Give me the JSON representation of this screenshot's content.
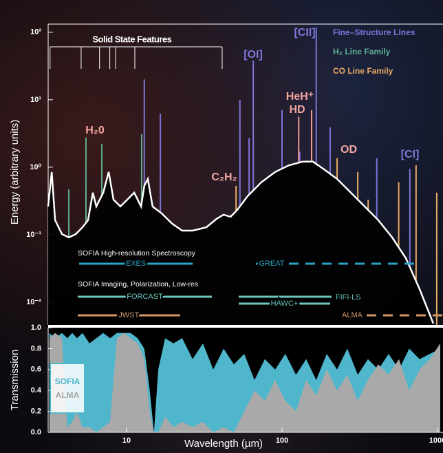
{
  "chart_data": [
    {
      "type": "line",
      "ylabel": "Energy (arbitrary units)",
      "log_x": true,
      "log_y": true,
      "xlim": [
        3.13,
        1085
      ],
      "ylim": [
        0.0046,
        132
      ],
      "yticks": [
        {
          "value": 100,
          "label": "10²"
        },
        {
          "value": 10,
          "label": "10¹"
        },
        {
          "value": 1,
          "label": "10⁰"
        },
        {
          "value": 0.1,
          "label": "10⁻¹"
        },
        {
          "value": 0.01,
          "label": "10⁻²"
        }
      ],
      "sed": {
        "color": "#ffffff",
        "x": [
          3.13,
          3.3,
          3.47,
          3.84,
          4.25,
          4.71,
          5.21,
          5.65,
          6.07,
          6.39,
          7.08,
          7.67,
          8.24,
          9.12,
          10.1,
          11.2,
          12.4,
          13.0,
          13.7,
          14.7,
          16.8,
          19.6,
          22.8,
          26.6,
          32.6,
          38.0,
          42.1,
          46.6,
          51.5,
          60.1,
          73.6,
          90.3,
          111,
          136,
          158,
          184,
          226,
          277,
          340,
          416,
          511,
          625,
          767,
          940
        ],
        "values": [
          0.262,
          0.85,
          0.164,
          0.102,
          0.091,
          0.102,
          0.129,
          0.164,
          0.419,
          0.262,
          0.419,
          0.85,
          0.331,
          0.262,
          0.331,
          0.419,
          0.262,
          0.53,
          0.67,
          0.262,
          0.207,
          0.146,
          0.115,
          0.115,
          0.129,
          0.172,
          0.198,
          0.184,
          0.233,
          0.373,
          0.597,
          0.85,
          1.07,
          1.21,
          1.21,
          0.95,
          0.67,
          0.419,
          0.262,
          0.164,
          0.091,
          0.045,
          0.0156,
          0.00483
        ]
      },
      "line_families": [
        {
          "name": "Fine–Structure Lines",
          "color": "#7d74d8",
          "lines": {
            "x": [
              13.0,
              16.5,
              53.6,
              61.4,
              65.3,
              100,
              130,
              166,
              204,
              407,
              664
            ],
            "values": [
              20,
              6.2,
              10,
              2.7,
              38,
              7,
              1.7,
              118,
              3.9,
              1.36,
              0.95
            ]
          }
        },
        {
          "name": "H₂ Line Family",
          "color": "#5fae90",
          "lines": {
            "x": [
              4.25,
              5.48,
              6.93,
              12.5
            ],
            "values": [
              0.47,
              2.75,
              2.2,
              3.1
            ]
          }
        },
        {
          "name": "CO Line Family",
          "color": "#e9a962",
          "lines": {
            "x": [
              50.6,
              226,
              307,
              358,
              563,
              728,
              989
            ],
            "values": [
              0.53,
              1.36,
              0.85,
              0.33,
              0.6,
              1.07,
              0.42
            ]
          }
        }
      ],
      "other_lines": {
        "color": "#f09a98",
        "x": [
          128,
          155
        ],
        "values": [
          5.6,
          7
        ]
      },
      "annotations": [
        {
          "text": "H₂0",
          "color": "#f4a6a2"
        },
        {
          "text": "C₂H₂",
          "color": "#f4a6a2"
        },
        {
          "text": "[OI]",
          "color": "#7f78d8"
        },
        {
          "text": "[CII]",
          "color": "#7f78d8"
        },
        {
          "text": "HeH⁺",
          "color": "#f4a6a2"
        },
        {
          "text": "HD",
          "color": "#f4a6a2"
        },
        {
          "text": "OD",
          "color": "#f4a6a2"
        },
        {
          "text": "[CI]",
          "color": "#7f78d8"
        }
      ],
      "bracket": {
        "label": "Solid State Features",
        "x": [
          3.22,
          41.2
        ],
        "ticks": [
          5.1,
          6.7,
          7.8,
          8.5,
          11.3
        ]
      },
      "instrument_groups": [
        {
          "title": "SOFIA High-resolution Spectroscopy",
          "instruments": [
            {
              "name": "EXES",
              "range": [
                4.95,
                26.6
              ],
              "color": "#2aa4c6",
              "dashed": false
            },
            {
              "name": "GREAT",
              "range": [
                67.9,
                729
              ],
              "color": "#2aa4c6",
              "dashed": true
            }
          ]
        },
        {
          "title": "SOFIA Imaging, Polarization, Low-res",
          "instruments": [
            {
              "name": "FORCAST",
              "range": [
                4.85,
                35.4
              ],
              "color": "#6cc6bd",
              "dashed": false
            },
            {
              "name": "FIFI-LS",
              "range": [
                52.6,
                208
              ],
              "color": "#6cc6bd",
              "dashed": false
            },
            {
              "name": "HAWC+",
              "range": [
                52.6,
                204
              ],
              "color": "#6cc6bd",
              "dashed": false
            },
            {
              "name": "JWST",
              "range": [
                4.85,
                22.1
              ],
              "color": "#d49868",
              "dashed": false
            },
            {
              "name": "ALMA",
              "range": [
                350,
                1085
              ],
              "color": "#d49868",
              "dashed": true
            }
          ]
        }
      ]
    },
    {
      "type": "area",
      "ylabel": "Transmission",
      "xlabel": "Wavelength (µm)",
      "log_x": true,
      "xlim": [
        3.13,
        1085
      ],
      "ylim": [
        0,
        1.0
      ],
      "xticks": [
        10,
        100,
        1000
      ],
      "yticks": [
        {
          "value": 0,
          "label": "0.0"
        },
        0.2,
        0.4,
        0.6,
        0.8,
        {
          "value": 1.0,
          "label": "1.0"
        }
      ],
      "x": [
        3.19,
        3.47,
        3.84,
        4.16,
        4.47,
        4.8,
        5.21,
        5.77,
        6.39,
        7.07,
        7.83,
        8.67,
        9.6,
        10.6,
        11.8,
        13.0,
        14.1,
        15.0,
        16.0,
        17.7,
        20.0,
        22.8,
        26.6,
        31.0,
        36.1,
        42.1,
        49.0,
        57.1,
        66.5,
        77.5,
        90.3,
        105,
        123,
        143,
        166,
        194,
        226,
        263,
        307,
        357,
        416,
        485,
        565,
        658,
        767,
        894,
        1042
      ],
      "series": [
        {
          "name": "SOFIA",
          "color": "#4fb6cc",
          "values": [
            0.95,
            0.9,
            0.95,
            0.9,
            0.95,
            0.9,
            0.95,
            0.85,
            0.9,
            0.95,
            0.9,
            0.95,
            0.95,
            0.95,
            0.9,
            0.8,
            0.4,
            0.0,
            0.6,
            0.9,
            0.85,
            0.9,
            0.7,
            0.85,
            0.6,
            0.8,
            0.65,
            0.75,
            0.5,
            0.7,
            0.6,
            0.75,
            0.55,
            0.7,
            0.5,
            0.75,
            0.6,
            0.8,
            0.55,
            0.7,
            0.6,
            0.75,
            0.6,
            0.8,
            0.7,
            0.75,
            0.8
          ]
        },
        {
          "name": "ALMA",
          "color": "#a9a9a9",
          "values": [
            0.9,
            0.95,
            0.9,
            0.05,
            0.1,
            0.2,
            0.05,
            0.05,
            0.0,
            0.05,
            0.1,
            0.9,
            0.95,
            0.9,
            0.85,
            0.7,
            0.2,
            0.0,
            0.0,
            0.15,
            0.05,
            0.1,
            0.05,
            0.1,
            0.0,
            0.05,
            0.0,
            0.2,
            0.4,
            0.3,
            0.5,
            0.3,
            0.2,
            0.5,
            0.35,
            0.6,
            0.4,
            0.55,
            0.3,
            0.5,
            0.65,
            0.55,
            0.7,
            0.4,
            0.6,
            0.7,
            0.85
          ]
        }
      ]
    }
  ]
}
